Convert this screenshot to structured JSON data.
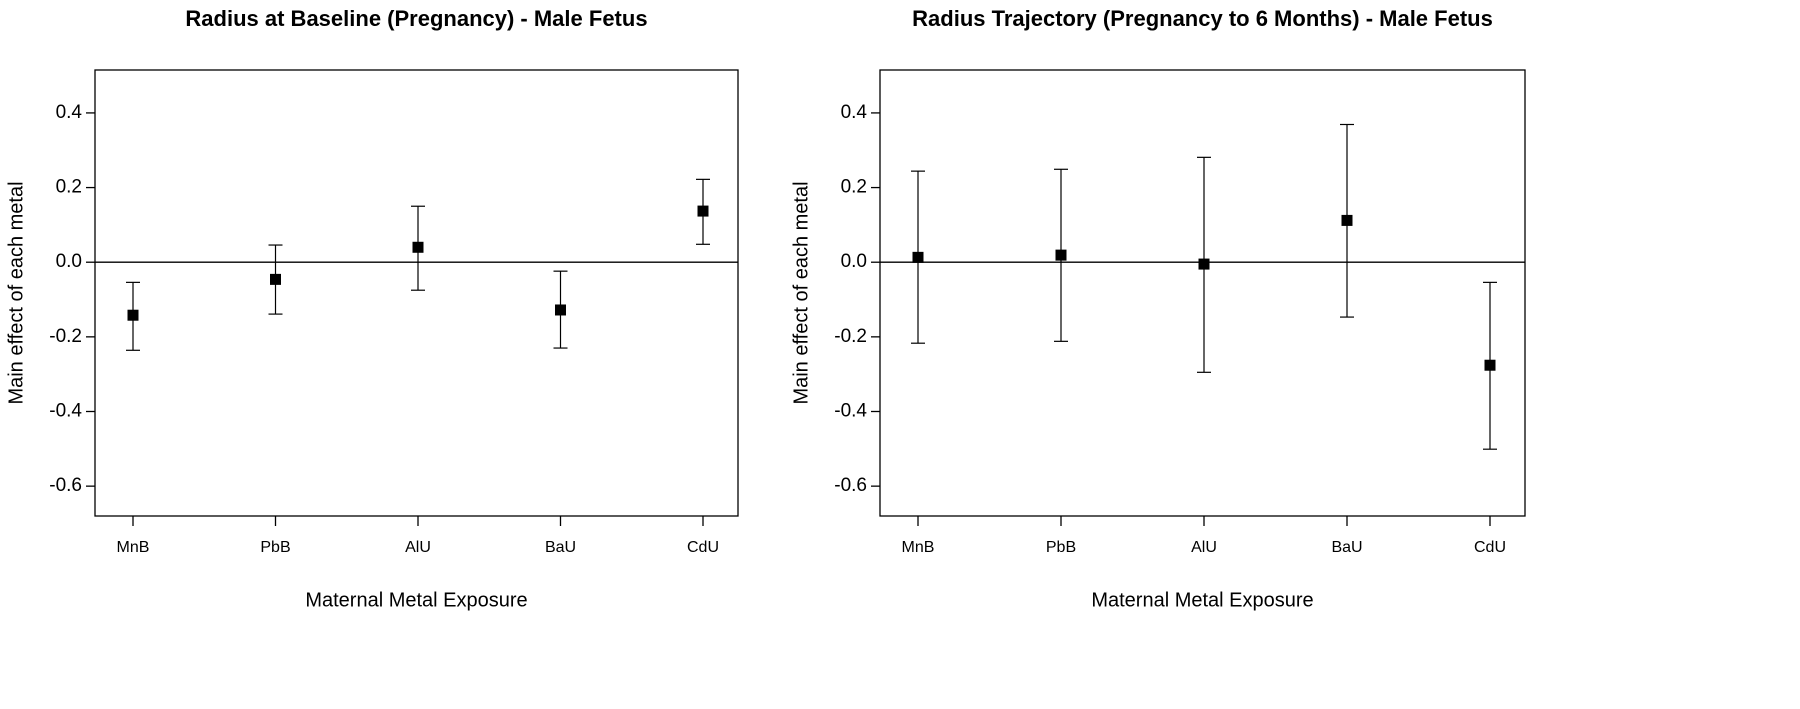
{
  "chart_data": [
    {
      "type": "errorbar",
      "title": "Radius at Baseline (Pregnancy) - Male Fetus",
      "x_label": "Maternal Metal Exposure",
      "y_label": "Main effect of each metal",
      "categories": [
        "MnB",
        "PbB",
        "AlU",
        "BaU",
        "CdU"
      ],
      "values": [
        -0.142,
        -0.046,
        0.04,
        -0.128,
        0.137
      ],
      "lower": [
        -0.236,
        -0.139,
        -0.075,
        -0.23,
        0.048
      ],
      "upper": [
        -0.054,
        0.046,
        0.15,
        -0.024,
        0.222
      ],
      "color": "#000000",
      "ylim": [
        -0.68,
        0.515
      ],
      "yticks": [
        -0.6,
        -0.4,
        -0.2,
        {
          "value": 0,
          "label": "0.0"
        },
        0.2,
        0.4
      ],
      "reference_line": 0
    },
    {
      "type": "errorbar",
      "title": "Radius Trajectory (Pregnancy to 6 Months) - Male Fetus",
      "x_label": "Maternal Metal Exposure",
      "y_label": "Main effect of each metal",
      "categories": [
        "MnB",
        "PbB",
        "AlU",
        "BaU",
        "CdU"
      ],
      "values": [
        0.013,
        0.019,
        -0.005,
        0.112,
        -0.276
      ],
      "lower": [
        -0.217,
        -0.212,
        -0.295,
        -0.147,
        -0.501
      ],
      "upper": [
        0.244,
        0.249,
        0.281,
        0.369,
        -0.054
      ],
      "color": "#000000",
      "ylim": [
        -0.68,
        0.515
      ],
      "yticks": [
        -0.6,
        -0.4,
        -0.2,
        {
          "value": 0,
          "label": "0.0"
        },
        0.2,
        0.4
      ],
      "reference_line": 0
    }
  ]
}
